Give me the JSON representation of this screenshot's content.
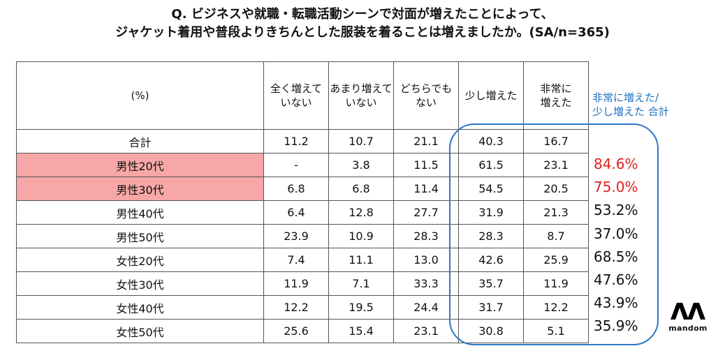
{
  "title": {
    "line1": "Q. ビジネスや就職・転職活動シーンで対面が増えたことによって、",
    "line2": "ジャケット着用や普段よりきちんとした服装を着ることは増えましたか。(SA/n=365)"
  },
  "table": {
    "unit_label": "(%)",
    "columns": [
      [
        "全く増えて",
        "いない"
      ],
      [
        "あまり増えて",
        "いない"
      ],
      [
        "どちらでも",
        "ない"
      ],
      [
        "少し増えた",
        ""
      ],
      [
        "非常に",
        "増えた"
      ]
    ],
    "rows": [
      {
        "label": "合計",
        "values": [
          "11.2",
          "10.7",
          "21.1",
          "40.3",
          "16.7"
        ]
      },
      {
        "label": "男性20代",
        "values": [
          "-",
          "3.8",
          "11.5",
          "61.5",
          "23.1"
        ]
      },
      {
        "label": "男性30代",
        "values": [
          "6.8",
          "6.8",
          "11.4",
          "54.5",
          "20.5"
        ]
      },
      {
        "label": "男性40代",
        "values": [
          "6.4",
          "12.8",
          "27.7",
          "31.9",
          "21.3"
        ]
      },
      {
        "label": "男性50代",
        "values": [
          "23.9",
          "10.9",
          "28.3",
          "28.3",
          "8.7"
        ]
      },
      {
        "label": "女性20代",
        "values": [
          "7.4",
          "11.1",
          "13.0",
          "42.6",
          "25.9"
        ]
      },
      {
        "label": "女性30代",
        "values": [
          "11.9",
          "7.1",
          "33.3",
          "35.7",
          "11.9"
        ]
      },
      {
        "label": "女性40代",
        "values": [
          "12.2",
          "19.5",
          "24.4",
          "31.7",
          "12.2"
        ]
      },
      {
        "label": "女性50代",
        "values": [
          "25.6",
          "15.4",
          "23.1",
          "30.8",
          "5.1"
        ]
      }
    ]
  },
  "combined": {
    "header_line1": "非常に増えた/",
    "header_line2": "少し増えた 合計",
    "values": [
      "84.6%",
      "75.0%",
      "53.2%",
      "37.0%",
      "68.5%",
      "47.6%",
      "43.9%",
      "35.9%"
    ]
  },
  "logo": {
    "text": "mandom"
  },
  "colors": {
    "highlight_fill": "#f7a7a7",
    "highlight_text": "#e02020",
    "box_blue": "#2f76c8",
    "subhead_blue": "#1e6fc4"
  },
  "chart_data": {
    "type": "table",
    "title": "Q. ビジネスや就職・転職活動シーンで対面が増えたことによって、ジャケット着用や普段よりきちんとした服装を着ることは増えましたか。(SA/n=365)",
    "unit": "(%)",
    "columns": [
      "全く増えていない",
      "あまり増えていない",
      "どちらでもない",
      "少し増えた",
      "非常に増えた",
      "非常に増えた/少し増えた 合計"
    ],
    "rows": [
      {
        "label": "合計",
        "values": [
          11.2,
          10.7,
          21.1,
          40.3,
          16.7,
          null
        ]
      },
      {
        "label": "男性20代",
        "values": [
          null,
          3.8,
          11.5,
          61.5,
          23.1,
          84.6
        ]
      },
      {
        "label": "男性30代",
        "values": [
          6.8,
          6.8,
          11.4,
          54.5,
          20.5,
          75.0
        ]
      },
      {
        "label": "男性40代",
        "values": [
          6.4,
          12.8,
          27.7,
          31.9,
          21.3,
          53.2
        ]
      },
      {
        "label": "男性50代",
        "values": [
          23.9,
          10.9,
          28.3,
          28.3,
          8.7,
          37.0
        ]
      },
      {
        "label": "女性20代",
        "values": [
          7.4,
          11.1,
          13.0,
          42.6,
          25.9,
          68.5
        ]
      },
      {
        "label": "女性30代",
        "values": [
          11.9,
          7.1,
          33.3,
          35.7,
          11.9,
          47.6
        ]
      },
      {
        "label": "女性40代",
        "values": [
          12.2,
          19.5,
          24.4,
          31.7,
          12.2,
          43.9
        ]
      },
      {
        "label": "女性50代",
        "values": [
          25.6,
          15.4,
          23.1,
          30.8,
          5.1,
          35.9
        ]
      }
    ],
    "highlighted_rows": [
      "男性20代",
      "男性30代"
    ]
  }
}
